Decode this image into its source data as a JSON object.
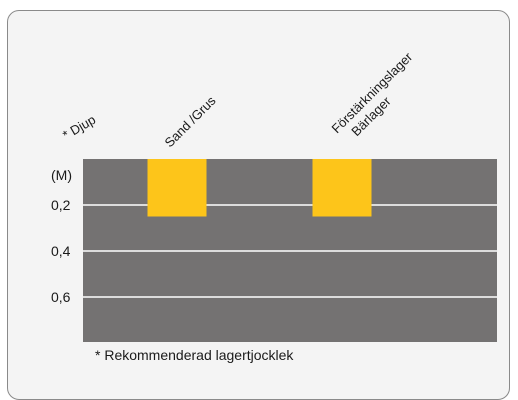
{
  "chart_data": {
    "type": "bar",
    "depth_header": "* Djup",
    "unit_label": "(M)",
    "categories": [
      "Sand /Grus",
      "Förstärkningslager Bärlager"
    ],
    "category_lines": [
      [
        "Sand /Grus"
      ],
      [
        "Förstärkningslager",
        "Bärlager"
      ]
    ],
    "values": [
      0.25,
      0.25
    ],
    "y_axis": {
      "reversed": true,
      "ticks": [
        "0,2",
        "0,4",
        "0,6"
      ],
      "tick_values": [
        0.2,
        0.4,
        0.6
      ],
      "range": [
        0,
        0.8
      ]
    },
    "grid": true,
    "footnote": "* Rekommenderad lagertjocklek",
    "colors": {
      "background_band": "#747272",
      "bar": "#fdc51a",
      "grid": "#ffffff"
    }
  }
}
